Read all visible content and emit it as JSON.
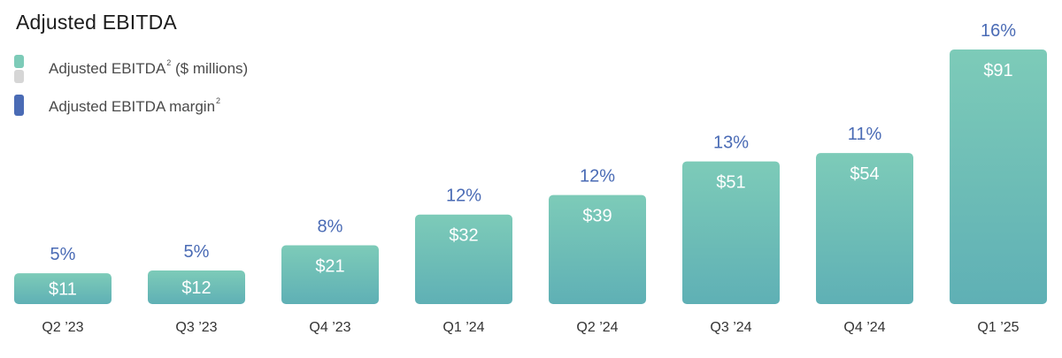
{
  "title": "Adjusted EBITDA",
  "legend": {
    "ebitda_label": "Adjusted EBITDA",
    "ebitda_sup": "2",
    "ebitda_units": " ($ millions)",
    "margin_label": "Adjusted EBITDA margin",
    "margin_sup": "2"
  },
  "colors": {
    "bar_top": "#7dcbb8",
    "bar_bottom": "#5fb0b5",
    "legend_gray": "#d6d6d6",
    "margin_blue": "#4a6bb5"
  },
  "chart_data": {
    "type": "bar",
    "categories": [
      "Q2 ’23",
      "Q3 ’23",
      "Q4 ’23",
      "Q1 ’24",
      "Q2 ’24",
      "Q3 ’24",
      "Q4 ’24",
      "Q1 ’25"
    ],
    "series": [
      {
        "name": "Adjusted EBITDA ($ millions)",
        "values": [
          11,
          12,
          21,
          32,
          39,
          51,
          54,
          91
        ],
        "labels": [
          "$11",
          "$12",
          "$21",
          "$32",
          "$39",
          "$51",
          "$54",
          "$91"
        ]
      },
      {
        "name": "Adjusted EBITDA margin",
        "values": [
          5,
          5,
          8,
          12,
          12,
          13,
          11,
          16
        ],
        "labels": [
          "5%",
          "5%",
          "8%",
          "12%",
          "12%",
          "13%",
          "11%",
          "16%"
        ]
      }
    ],
    "title": "Adjusted EBITDA",
    "ylim": [
      0,
      91
    ],
    "grid": false,
    "legend_position": "top-left"
  }
}
